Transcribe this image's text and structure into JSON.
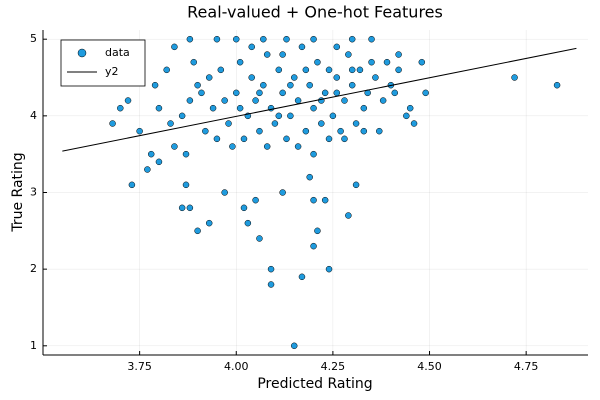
{
  "chart_data": {
    "type": "scatter",
    "title": "Real-valued + One-hot Features",
    "xlabel": "Predicted Rating",
    "ylabel": "True Rating",
    "xlim": [
      3.5,
      4.91
    ],
    "ylim": [
      0.88,
      5.12
    ],
    "xticks": [
      3.75,
      {
        "value": 4,
        "label": "4.00"
      },
      4.25,
      {
        "value": 4.5,
        "label": "4.50"
      },
      4.75
    ],
    "yticks": [
      1,
      2,
      3,
      4,
      5
    ],
    "grid": true,
    "legend": "top-left",
    "series": [
      {
        "name": "data",
        "color": "#1f9bde",
        "kind": "scatter",
        "x": [
          4.15,
          4.09,
          4.09,
          4.17,
          4.24,
          4.2,
          4.21,
          4.06,
          4.03,
          3.9,
          3.93,
          3.88,
          3.86,
          4.02,
          4.05,
          4.2,
          4.23,
          4.29,
          4.31,
          3.73,
          3.87,
          3.97,
          4.12,
          4.19,
          3.77,
          3.8,
          3.68,
          3.7,
          3.72,
          4.72,
          4.83,
          4.46,
          4.49,
          4.48,
          3.82,
          3.79,
          3.84,
          3.88,
          3.95,
          4.0,
          4.07,
          4.13,
          4.2,
          4.3,
          4.35,
          3.75,
          3.78,
          4.42,
          4.45,
          3.86,
          3.88,
          3.9,
          3.92,
          3.94,
          3.96,
          3.98,
          4.0,
          4.01,
          4.02,
          4.03,
          4.04,
          4.05,
          4.06,
          4.07,
          4.08,
          4.09,
          4.1,
          4.11,
          4.12,
          4.13,
          4.14,
          4.15,
          4.16,
          4.17,
          4.18,
          4.19,
          4.2,
          4.21,
          4.22,
          4.23,
          4.24,
          4.25,
          4.26,
          4.27,
          4.28,
          4.29,
          4.3,
          4.31,
          4.32,
          4.33,
          4.34,
          4.35,
          4.36,
          4.38,
          4.4,
          4.42,
          4.44,
          4.37,
          3.84,
          3.87,
          3.91,
          3.93,
          3.97,
          3.99,
          4.01,
          4.06,
          4.08,
          4.11,
          4.14,
          4.16,
          4.18,
          4.22,
          4.24,
          4.26,
          4.28,
          4.3,
          4.33,
          4.39,
          4.41,
          3.8,
          3.83,
          3.89,
          3.95,
          4.04,
          4.12,
          4.2,
          4.26
        ],
        "values": [
          1.0,
          1.8,
          2.0,
          1.9,
          2.0,
          2.3,
          2.5,
          2.4,
          2.6,
          2.5,
          2.6,
          2.8,
          2.8,
          2.8,
          2.9,
          2.9,
          2.9,
          2.7,
          3.1,
          3.1,
          3.1,
          3.0,
          3.0,
          3.2,
          3.3,
          3.4,
          3.9,
          4.1,
          4.2,
          4.5,
          4.4,
          3.9,
          4.3,
          4.7,
          4.6,
          4.4,
          4.9,
          5.0,
          5.0,
          5.0,
          5.0,
          5.0,
          5.0,
          5.0,
          5.0,
          3.8,
          3.5,
          4.8,
          4.1,
          4.0,
          4.2,
          4.4,
          3.8,
          4.1,
          4.6,
          3.9,
          4.3,
          4.7,
          3.7,
          4.0,
          4.5,
          4.2,
          3.8,
          4.4,
          4.8,
          4.1,
          3.9,
          4.6,
          4.3,
          3.7,
          4.0,
          4.5,
          4.2,
          4.9,
          3.8,
          4.4,
          4.1,
          4.7,
          3.9,
          4.3,
          4.6,
          4.0,
          4.5,
          3.8,
          4.2,
          4.8,
          4.4,
          3.9,
          4.6,
          4.1,
          4.3,
          4.7,
          4.5,
          4.2,
          4.4,
          4.6,
          4.0,
          3.8,
          3.6,
          3.5,
          4.3,
          4.5,
          4.2,
          3.6,
          4.1,
          4.3,
          3.6,
          4.0,
          4.4,
          3.6,
          4.6,
          4.2,
          3.7,
          4.3,
          3.7,
          4.6,
          3.8,
          4.7,
          4.3,
          4.1,
          3.9,
          4.7,
          3.7,
          4.9,
          4.8,
          3.5,
          4.9
        ]
      },
      {
        "name": "y2",
        "color": "#000000",
        "kind": "line",
        "x": [
          3.55,
          4.88
        ],
        "values": [
          3.54,
          4.88
        ]
      }
    ]
  }
}
